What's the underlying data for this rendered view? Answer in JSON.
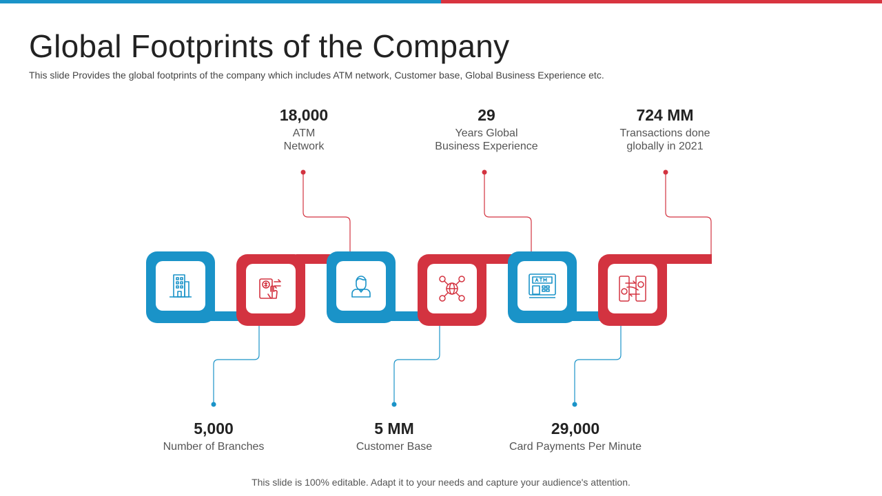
{
  "header": {
    "title": "Global Footprints of the Company",
    "subtitle": "This slide Provides the global footprints of the company which includes ATM network, Customer base, Global Business Experience etc."
  },
  "colors": {
    "blue": "#1a93c8",
    "red": "#d33340"
  },
  "top_stats": [
    {
      "value": "18,000",
      "label": "ATM\nNetwork"
    },
    {
      "value": "29",
      "label": "Years Global\nBusiness Experience"
    },
    {
      "value": "724 MM",
      "label": "Transactions done\nglobally in 2021"
    }
  ],
  "bottom_stats": [
    {
      "value": "5,000",
      "label": "Number of Branches"
    },
    {
      "value": "5 MM",
      "label": "Customer Base"
    },
    {
      "value": "29,000",
      "label": "Card Payments Per Minute"
    }
  ],
  "tiles": [
    {
      "icon": "building-icon",
      "color": "blue"
    },
    {
      "icon": "money-transfer-icon",
      "color": "red"
    },
    {
      "icon": "customer-icon",
      "color": "blue"
    },
    {
      "icon": "global-network-icon",
      "color": "red"
    },
    {
      "icon": "atm-icon",
      "color": "blue"
    },
    {
      "icon": "card-payment-icon",
      "color": "red"
    }
  ],
  "footer": "This slide is 100% editable. Adapt it to your needs and capture your audience's attention."
}
